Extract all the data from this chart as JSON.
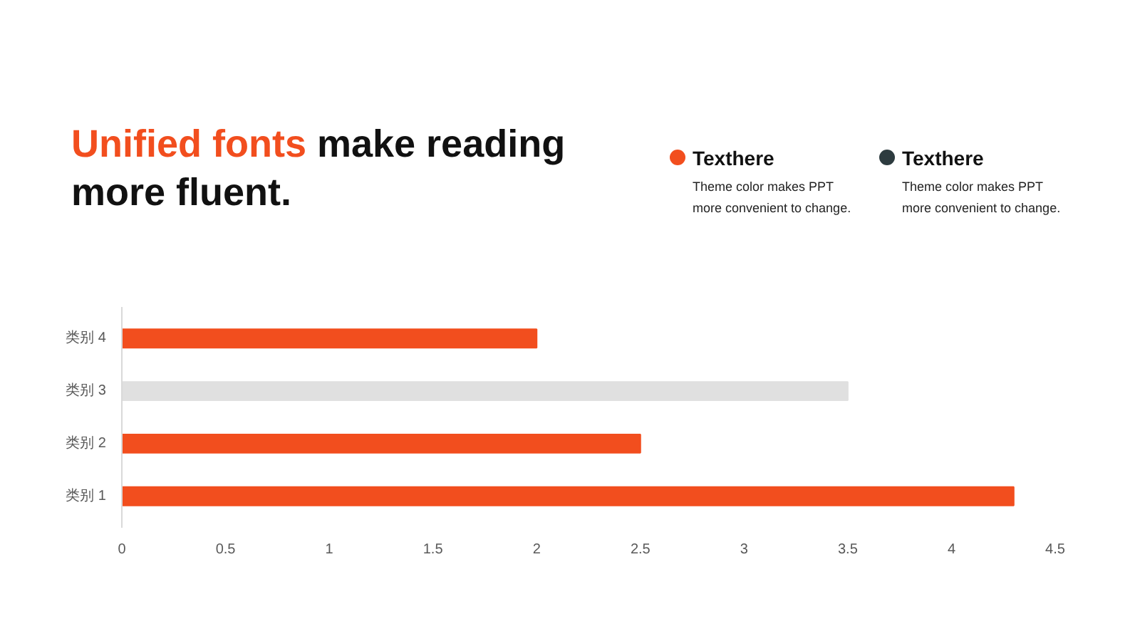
{
  "chart_data": {
    "type": "bar",
    "orientation": "horizontal",
    "title": "Unified fonts make reading more fluent.",
    "categories": [
      "类别 4",
      "类别 3",
      "类别 2",
      "类别 1"
    ],
    "values": [
      2,
      3.5,
      2.5,
      4.3
    ],
    "colors": [
      "#f24e1e",
      "#e0e0e0",
      "#f24e1e",
      "#f24e1e"
    ],
    "xlim": [
      0,
      4.5
    ],
    "xticks": [
      0,
      0.5,
      1,
      1.5,
      2,
      2.5,
      3,
      3.5,
      4,
      4.5
    ],
    "grid": false,
    "annotations": [
      "Texthere",
      "Theme color makes PPT more convenient to change.",
      "Texthere",
      "Theme color makes PPT more convenient to change."
    ]
  }
}
